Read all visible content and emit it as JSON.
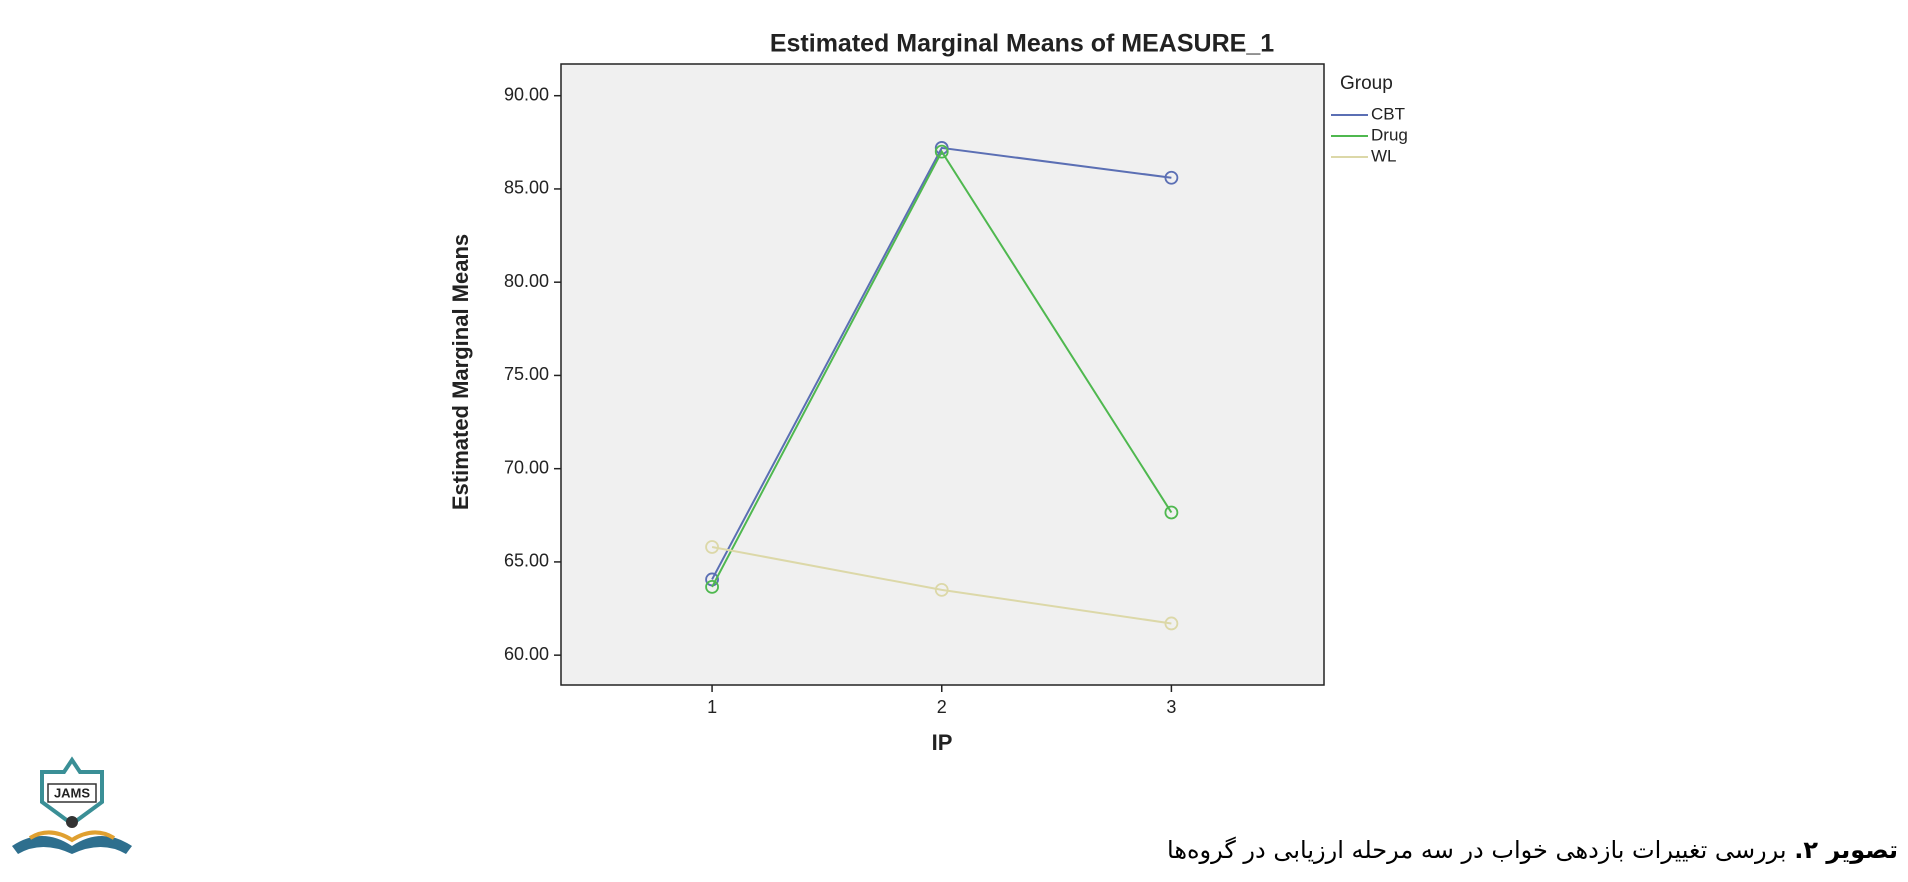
{
  "chart_data": {
    "type": "line",
    "title": "Estimated Marginal Means of MEASURE_1",
    "x_label": "IP",
    "y_label": "Estimated Marginal Means",
    "legend_title": "Group",
    "legend_position": "outside-right",
    "grid": false,
    "categories": [
      "1",
      "2",
      "3"
    ],
    "series": [
      {
        "name": "CBT",
        "color": "#5b6fb4",
        "values": [
          64.06,
          87.2,
          85.6
        ]
      },
      {
        "name": "Drug",
        "color": "#4fb84f",
        "values": [
          63.66,
          87.0,
          67.65
        ]
      },
      {
        "name": "WL",
        "color": "#dcd8a8",
        "values": [
          65.8,
          63.5,
          61.7
        ]
      }
    ],
    "ylim": [
      58.4,
      91.7
    ],
    "yticks": [
      {
        "value": 60,
        "label": "60.00"
      },
      {
        "value": 65,
        "label": "65.00"
      },
      {
        "value": 70,
        "label": "70.00"
      },
      {
        "value": 75,
        "label": "75.00"
      },
      {
        "value": 80,
        "label": "80.00"
      },
      {
        "value": 85,
        "label": "85.00"
      },
      {
        "value": 90,
        "label": "90.00"
      }
    ]
  },
  "logo": {
    "text": "JAMS"
  },
  "caption": {
    "label": "تصویر ۲.",
    "text": "بررسی تغییرات بازدهی خواب در سه مرحله ارزیابی در گروه‌ها"
  }
}
